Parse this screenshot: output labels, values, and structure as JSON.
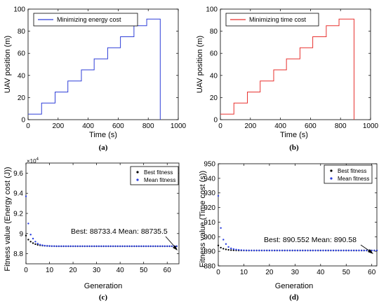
{
  "chart_data": [
    {
      "id": "a",
      "type": "line",
      "caption": "(a)",
      "xlabel": "Time (s)",
      "ylabel": "UAV position (m)",
      "xlim": [
        0,
        1000
      ],
      "ylim": [
        0,
        100
      ],
      "xticks": [
        "0",
        "200",
        "400",
        "600",
        "800",
        "1000"
      ],
      "yticks": [
        "0",
        "20",
        "40",
        "60",
        "80",
        "100"
      ],
      "legend_position": "top-left",
      "color": "#2f3fd8",
      "series": [
        {
          "name": "Minimizing energy cost",
          "x": [
            0,
            90,
            90,
            180,
            180,
            265,
            265,
            355,
            355,
            440,
            440,
            530,
            530,
            615,
            615,
            705,
            705,
            790,
            790,
            880,
            880
          ],
          "y": [
            5,
            5,
            15,
            15,
            25,
            25,
            35,
            35,
            45,
            45,
            55,
            55,
            65,
            65,
            75,
            75,
            85,
            85,
            91,
            91,
            0
          ]
        }
      ]
    },
    {
      "id": "b",
      "type": "line",
      "caption": "(b)",
      "xlabel": "Time (s)",
      "ylabel": "UAV position (m)",
      "xlim": [
        0,
        1000
      ],
      "ylim": [
        0,
        100
      ],
      "xticks": [
        "0",
        "200",
        "400",
        "600",
        "800",
        "1000"
      ],
      "yticks": [
        "0",
        "20",
        "40",
        "60",
        "80",
        "100"
      ],
      "legend_position": "top-left",
      "color": "#e8312f",
      "series": [
        {
          "name": "Minimizing time cost",
          "x": [
            0,
            90,
            90,
            180,
            180,
            265,
            265,
            355,
            355,
            440,
            440,
            530,
            530,
            615,
            615,
            705,
            705,
            790,
            790,
            890,
            890
          ],
          "y": [
            5,
            5,
            15,
            15,
            25,
            25,
            35,
            35,
            45,
            45,
            55,
            55,
            65,
            65,
            75,
            75,
            85,
            85,
            91,
            91,
            0
          ]
        }
      ]
    },
    {
      "id": "c",
      "type": "scatter",
      "caption": "(c)",
      "xlabel": "Generation",
      "ylabel": "Fitness value (Energy cost (J))",
      "exponent_label": "×10",
      "exponent_power": "4",
      "xlim": [
        0,
        65
      ],
      "ylim": [
        8.7,
        9.7
      ],
      "xticks": [
        "0",
        "10",
        "20",
        "30",
        "40",
        "50",
        "60"
      ],
      "yticks": [
        "8.8",
        "9",
        "9.2",
        "9.4",
        "9.6"
      ],
      "legend_position": "top-right",
      "annotation": "Best: 88733.4 Mean: 88735.5",
      "series": [
        {
          "name": "Best fitness",
          "color": "#000000",
          "x": [
            0,
            1,
            2,
            3,
            4,
            5,
            6,
            7,
            8,
            9,
            10,
            11,
            12,
            13,
            14,
            15,
            16,
            17,
            18,
            19,
            20,
            21,
            22,
            23,
            24,
            25,
            26,
            27,
            28,
            29,
            30,
            31,
            32,
            33,
            34,
            35,
            36,
            37,
            38,
            39,
            40,
            41,
            42,
            43,
            44,
            45,
            46,
            47,
            48,
            49,
            50,
            51,
            52,
            53,
            54,
            55,
            56,
            57,
            58,
            59,
            60,
            61,
            62,
            63,
            64
          ],
          "y": [
            8.98,
            8.94,
            8.92,
            8.905,
            8.895,
            8.888,
            8.884,
            8.881,
            8.879,
            8.877,
            8.876,
            8.875,
            8.875,
            8.874,
            8.874,
            8.874,
            8.874,
            8.874,
            8.874,
            8.874,
            8.874,
            8.874,
            8.874,
            8.874,
            8.874,
            8.874,
            8.874,
            8.874,
            8.874,
            8.874,
            8.874,
            8.874,
            8.874,
            8.874,
            8.874,
            8.874,
            8.874,
            8.874,
            8.874,
            8.874,
            8.874,
            8.874,
            8.874,
            8.874,
            8.874,
            8.874,
            8.874,
            8.874,
            8.874,
            8.874,
            8.874,
            8.874,
            8.874,
            8.874,
            8.874,
            8.874,
            8.874,
            8.874,
            8.874,
            8.874,
            8.874,
            8.874,
            8.874,
            8.874,
            8.874
          ]
        },
        {
          "name": "Mean fitness",
          "color": "#2b3fe0",
          "x": [
            0,
            1,
            2,
            3,
            4,
            5,
            6,
            7,
            8,
            9,
            10,
            11,
            12,
            13,
            14,
            15,
            16,
            17,
            18,
            19,
            20,
            21,
            22,
            23,
            24,
            25,
            26,
            27,
            28,
            29,
            30,
            31,
            32,
            33,
            34,
            35,
            36,
            37,
            38,
            39,
            40,
            41,
            42,
            43,
            44,
            45,
            46,
            47,
            48,
            49,
            50,
            51,
            52,
            53,
            54,
            55,
            56,
            57,
            58,
            59,
            60,
            61,
            62,
            63,
            64
          ],
          "y": [
            9.37,
            9.1,
            8.99,
            8.95,
            8.92,
            8.9,
            8.89,
            8.884,
            8.88,
            8.878,
            8.877,
            8.876,
            8.875,
            8.875,
            8.875,
            8.875,
            8.875,
            8.875,
            8.875,
            8.875,
            8.875,
            8.875,
            8.875,
            8.875,
            8.875,
            8.875,
            8.875,
            8.875,
            8.875,
            8.875,
            8.875,
            8.875,
            8.875,
            8.875,
            8.875,
            8.875,
            8.875,
            8.875,
            8.875,
            8.875,
            8.875,
            8.875,
            8.875,
            8.875,
            8.875,
            8.875,
            8.875,
            8.875,
            8.875,
            8.875,
            8.875,
            8.875,
            8.875,
            8.875,
            8.875,
            8.875,
            8.875,
            8.875,
            8.875,
            8.875,
            8.875,
            8.875,
            8.875,
            8.875,
            8.875
          ]
        }
      ]
    },
    {
      "id": "d",
      "type": "scatter",
      "caption": "(d)",
      "xlabel": "Generation",
      "ylabel": "Fitness value (Time cost (s))",
      "xlim": [
        0,
        62
      ],
      "ylim": [
        880,
        950
      ],
      "xticks": [
        "0",
        "10",
        "20",
        "30",
        "40",
        "50",
        "60"
      ],
      "yticks": [
        "880",
        "890",
        "900",
        "910",
        "920",
        "930",
        "940",
        "950"
      ],
      "legend_position": "top-right",
      "annotation": "Best: 890.552 Mean: 890.58",
      "series": [
        {
          "name": "Best fitness",
          "color": "#000000",
          "x": [
            0,
            1,
            2,
            3,
            4,
            5,
            6,
            7,
            8,
            9,
            10,
            11,
            12,
            13,
            14,
            15,
            16,
            17,
            18,
            19,
            20,
            21,
            22,
            23,
            24,
            25,
            26,
            27,
            28,
            29,
            30,
            31,
            32,
            33,
            34,
            35,
            36,
            37,
            38,
            39,
            40,
            41,
            42,
            43,
            44,
            45,
            46,
            47,
            48,
            49,
            50,
            51,
            52,
            53,
            54,
            55,
            56,
            57,
            58,
            59,
            60,
            61,
            62
          ],
          "y": [
            894,
            892.5,
            891.8,
            891.3,
            891,
            890.8,
            890.7,
            890.65,
            890.6,
            890.58,
            890.56,
            890.55,
            890.55,
            890.55,
            890.55,
            890.55,
            890.55,
            890.55,
            890.55,
            890.55,
            890.55,
            890.55,
            890.55,
            890.55,
            890.55,
            890.55,
            890.55,
            890.55,
            890.55,
            890.55,
            890.55,
            890.55,
            890.55,
            890.55,
            890.55,
            890.55,
            890.55,
            890.55,
            890.55,
            890.55,
            890.55,
            890.55,
            890.55,
            890.55,
            890.55,
            890.55,
            890.55,
            890.55,
            890.55,
            890.55,
            890.55,
            890.55,
            890.55,
            890.55,
            890.55,
            890.55,
            890.55,
            890.55,
            890.55,
            890.55,
            890.55,
            890.55,
            890.55
          ]
        },
        {
          "name": "Mean fitness",
          "color": "#2b3fe0",
          "x": [
            0,
            1,
            2,
            3,
            4,
            5,
            6,
            7,
            8,
            9,
            10,
            11,
            12,
            13,
            14,
            15,
            16,
            17,
            18,
            19,
            20,
            21,
            22,
            23,
            24,
            25,
            26,
            27,
            28,
            29,
            30,
            31,
            32,
            33,
            34,
            35,
            36,
            37,
            38,
            39,
            40,
            41,
            42,
            43,
            44,
            45,
            46,
            47,
            48,
            49,
            50,
            51,
            52,
            53,
            54,
            55,
            56,
            57,
            58,
            59,
            60,
            61,
            62
          ],
          "y": [
            928,
            906,
            898,
            895,
            893,
            892,
            891.5,
            891.2,
            891,
            890.8,
            890.7,
            890.65,
            890.6,
            890.6,
            890.6,
            890.6,
            890.6,
            890.6,
            890.6,
            890.6,
            890.6,
            890.6,
            890.6,
            890.6,
            890.6,
            890.6,
            890.6,
            890.6,
            890.6,
            890.6,
            890.6,
            890.6,
            890.6,
            890.6,
            890.6,
            890.6,
            890.6,
            890.6,
            890.6,
            890.6,
            890.6,
            890.6,
            890.6,
            890.6,
            890.6,
            890.6,
            890.6,
            890.6,
            890.6,
            890.6,
            890.6,
            890.6,
            890.6,
            890.6,
            890.6,
            890.6,
            890.6,
            890.6,
            890.6,
            890.6,
            890.6,
            890.6,
            890.6
          ]
        }
      ]
    }
  ]
}
